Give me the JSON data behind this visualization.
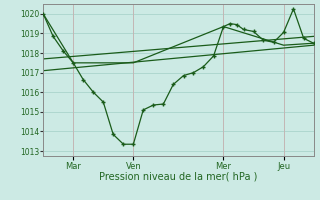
{
  "xlabel": "Pression niveau de la mer( hPa )",
  "bg_color": "#cceae4",
  "grid_color": "#aad4cc",
  "line_color": "#1a5c1a",
  "xlim": [
    0,
    9.0
  ],
  "ylim": [
    1012.75,
    1020.5
  ],
  "yticks": [
    1013,
    1014,
    1015,
    1016,
    1017,
    1018,
    1019,
    1020
  ],
  "xtick_positions": [
    1.0,
    3.0,
    6.0,
    8.0
  ],
  "xtick_labels": [
    "Mar",
    "Ven",
    "Mer",
    "Jeu"
  ],
  "main_x": [
    0,
    0.33,
    0.67,
    1.0,
    1.33,
    1.67,
    2.0,
    2.33,
    2.67,
    3.0,
    3.33,
    3.67,
    4.0,
    4.33,
    4.67,
    5.0,
    5.33,
    5.67,
    6.0,
    6.22,
    6.44,
    6.67,
    7.0,
    7.33,
    7.67,
    8.0,
    8.33,
    8.67,
    9.0
  ],
  "main_y": [
    1020.0,
    1018.85,
    1018.1,
    1017.5,
    1016.65,
    1016.0,
    1015.5,
    1013.85,
    1013.35,
    1013.35,
    1015.1,
    1015.35,
    1015.4,
    1016.4,
    1016.85,
    1017.0,
    1017.3,
    1017.85,
    1019.35,
    1019.5,
    1019.45,
    1019.2,
    1019.1,
    1018.65,
    1018.55,
    1019.05,
    1020.25,
    1018.75,
    1018.5
  ],
  "env_x": [
    0,
    1.0,
    3.0,
    6.0,
    8.0,
    9.0
  ],
  "env_y": [
    1020.0,
    1017.5,
    1017.5,
    1019.35,
    1018.4,
    1018.5
  ],
  "trend1_x": [
    0,
    9.0
  ],
  "trend1_y": [
    1017.1,
    1018.4
  ],
  "trend2_x": [
    0,
    9.0
  ],
  "trend2_y": [
    1017.7,
    1018.85
  ]
}
